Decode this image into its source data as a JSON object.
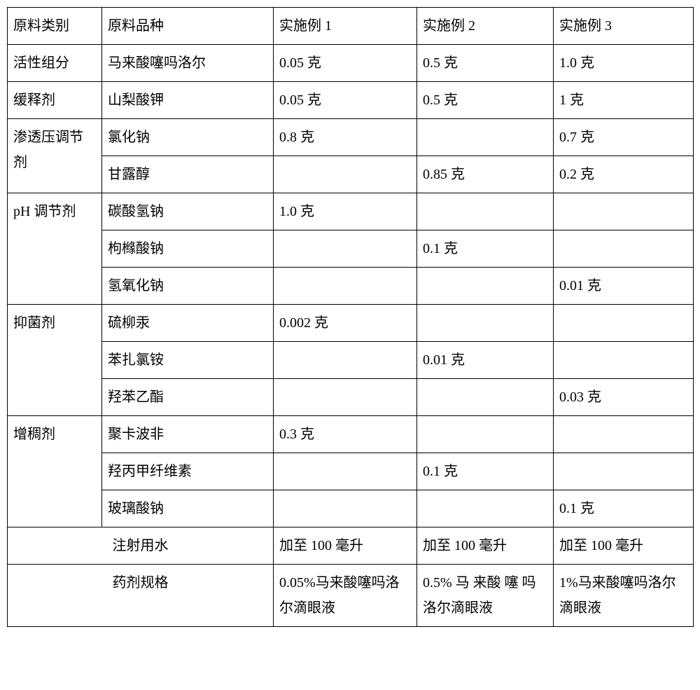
{
  "table": {
    "headers": {
      "col1": "原料类别",
      "col2": "原料品种",
      "col3": "实施例 1",
      "col4": "实施例 2",
      "col5": "实施例 3"
    },
    "rows": [
      {
        "category": "活性组分",
        "variety": "马来酸噻吗洛尔",
        "ex1": "0.05 克",
        "ex2": "0.5 克",
        "ex3": "1.0 克",
        "rowspan": 1
      },
      {
        "category": "缓释剂",
        "variety": "山梨酸钾",
        "ex1": "0.05 克",
        "ex2": "0.5 克",
        "ex3": "1 克",
        "rowspan": 1
      },
      {
        "category": "渗透压调节剂",
        "variety": "氯化钠",
        "ex1": "0.8 克",
        "ex2": "",
        "ex3": "0.7 克",
        "rowspan": 2
      },
      {
        "variety": "甘露醇",
        "ex1": "",
        "ex2": "0.85 克",
        "ex3": "0.2 克"
      },
      {
        "category": "pH 调节剂",
        "variety": "碳酸氢钠",
        "ex1": "1.0 克",
        "ex2": "",
        "ex3": "",
        "rowspan": 3
      },
      {
        "variety": "枸橼酸钠",
        "ex1": "",
        "ex2": "0.1 克",
        "ex3": ""
      },
      {
        "variety": "氢氧化钠",
        "ex1": "",
        "ex2": "",
        "ex3": "0.01 克"
      },
      {
        "category": "抑菌剂",
        "variety": "硫柳汞",
        "ex1": "0.002 克",
        "ex2": "",
        "ex3": "",
        "rowspan": 3
      },
      {
        "variety": "苯扎氯铵",
        "ex1": "",
        "ex2": "0.01 克",
        "ex3": ""
      },
      {
        "variety": "羟苯乙酯",
        "ex1": "",
        "ex2": "",
        "ex3": "0.03 克"
      },
      {
        "category": "增稠剂",
        "variety": "聚卡波非",
        "ex1": "0.3 克",
        "ex2": "",
        "ex3": "",
        "rowspan": 3
      },
      {
        "variety": "羟丙甲纤维素",
        "ex1": "",
        "ex2": "0.1 克",
        "ex3": ""
      },
      {
        "variety": "玻璃酸钠",
        "ex1": "",
        "ex2": "",
        "ex3": "0.1 克"
      }
    ],
    "footer": {
      "water": {
        "label": "注射用水",
        "ex1": "加至 100 毫升",
        "ex2": "加至 100 毫升",
        "ex3": "加至 100 毫升"
      },
      "spec": {
        "label": "药剂规格",
        "ex1": "0.05%马来酸噻吗洛尔滴眼液",
        "ex2": "0.5% 马 来酸 噻 吗 洛尔滴眼液",
        "ex3": "1%马来酸噻吗洛尔滴眼液"
      }
    }
  }
}
